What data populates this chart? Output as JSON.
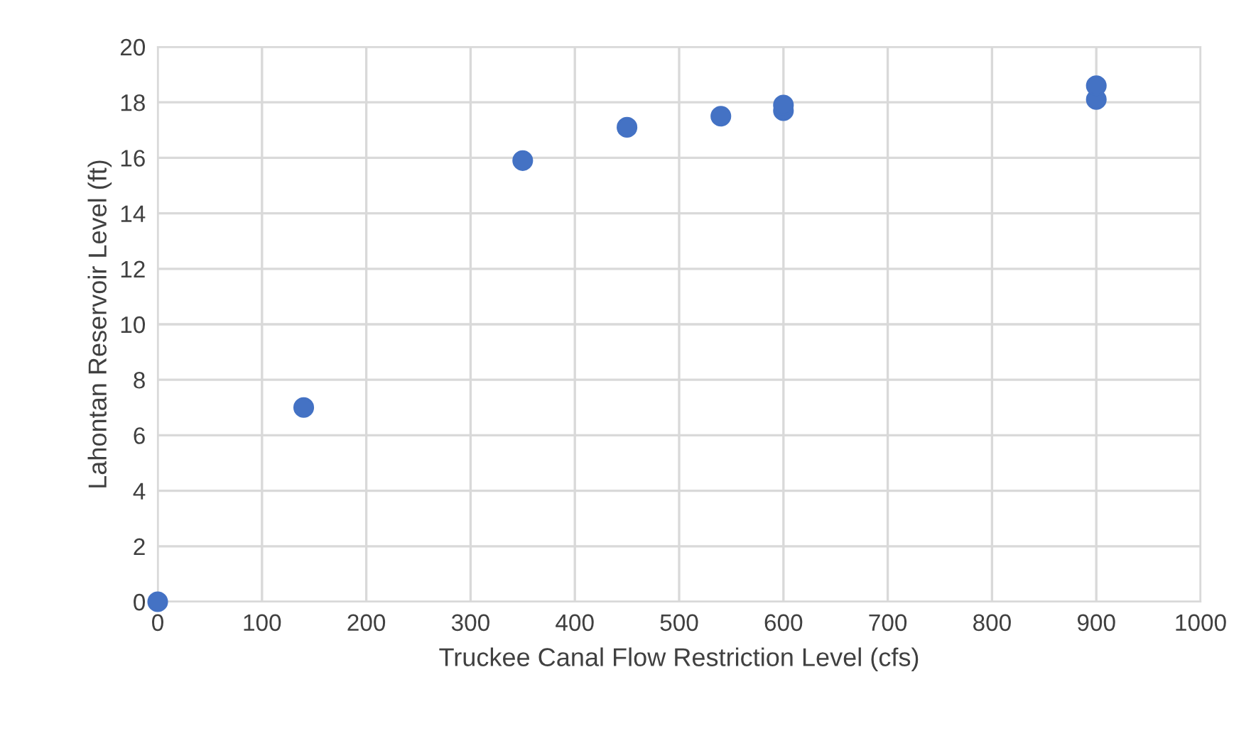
{
  "chart_data": {
    "type": "scatter",
    "xlabel": "Truckee Canal Flow Restriction Level (cfs)",
    "ylabel": "Lahontan Reservoir Level (ft)",
    "x": [
      0,
      140,
      350,
      450,
      540,
      600,
      600,
      900,
      900
    ],
    "series": [
      {
        "color": "#4472c4",
        "values": [
          0,
          7.0,
          15.9,
          17.1,
          17.5,
          17.7,
          17.9,
          18.1,
          18.6
        ]
      }
    ],
    "xlim": [
      0,
      1000
    ],
    "xticks": [
      0,
      100,
      200,
      300,
      400,
      500,
      600,
      700,
      800,
      900,
      1000
    ],
    "ylim": [
      0,
      20
    ],
    "yticks": [
      0,
      2,
      4,
      6,
      8,
      10,
      12,
      14,
      16,
      18,
      20
    ],
    "grid": true,
    "marker": "circle"
  }
}
